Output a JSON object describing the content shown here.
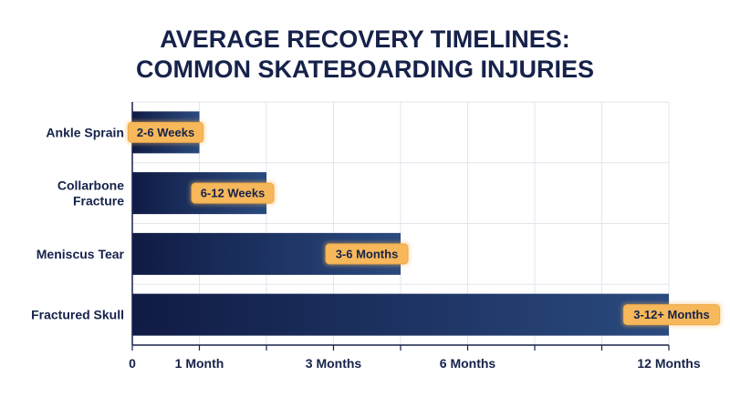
{
  "chart_data": {
    "type": "bar",
    "orientation": "horizontal",
    "title_lines": [
      "AVERAGE RECOVERY TIMELINES:",
      "COMMON SKATEBOARDING INJURIES"
    ],
    "categories": [
      [
        "Ankle Sprain"
      ],
      [
        "Collarbone",
        "Fracture"
      ],
      [
        "Meniscus Tear"
      ],
      [
        "Fractured Skull"
      ]
    ],
    "values": [
      1,
      2,
      4,
      8
    ],
    "data_labels": [
      "2-6 Weeks",
      "6-12 Weeks",
      "3-6 Months",
      "3-12+ Months"
    ],
    "xlim": [
      0,
      8
    ],
    "x_ticks": [
      0,
      1,
      2,
      3,
      4,
      5,
      6,
      7,
      8
    ],
    "x_tick_labels": [
      {
        "at": 0,
        "text": "0"
      },
      {
        "at": 1,
        "text": "1 Month"
      },
      {
        "at": 3,
        "text": "3 Months"
      },
      {
        "at": 5,
        "text": "6 Months"
      },
      {
        "at": 8,
        "text": "12 Months"
      }
    ],
    "grid": true,
    "colors": {
      "bar_start": "#101b45",
      "bar_end": "#2a4a7e",
      "label_bg": "#f6b85a",
      "label_border": "#f0a948",
      "text": "#16224a",
      "grid": "#e2e5ee",
      "axis": "#16224a"
    }
  }
}
